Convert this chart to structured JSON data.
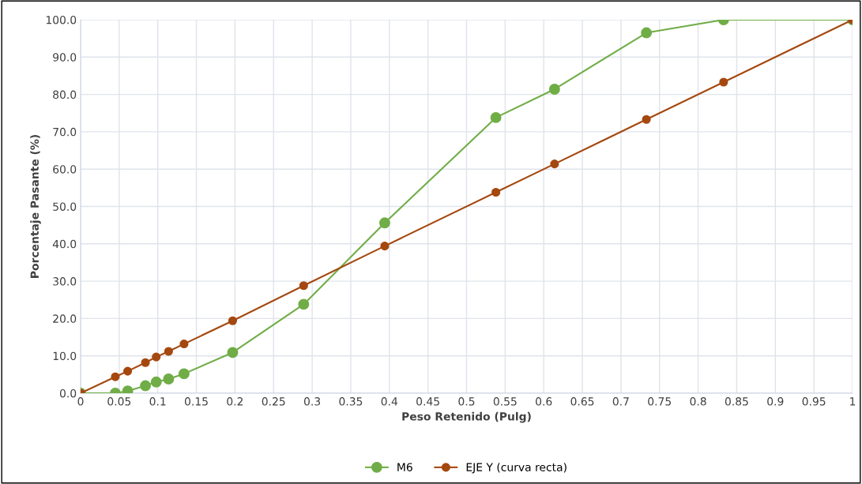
{
  "chart_data": {
    "type": "line",
    "xlabel": "Peso Retenido (Pulg)",
    "ylabel": "Porcentaje Pasante (%)",
    "xlim": [
      0,
      1
    ],
    "ylim": [
      0,
      100
    ],
    "xticks": [
      0,
      0.05,
      0.1,
      0.15,
      0.2,
      0.25,
      0.3,
      0.35,
      0.4,
      0.45,
      0.5,
      0.55,
      0.6,
      0.65,
      0.7,
      0.75,
      0.8,
      0.85,
      0.9,
      0.95,
      1
    ],
    "yticks": [
      {
        "value": 0,
        "label": "0.0"
      },
      {
        "value": 10,
        "label": "10.0"
      },
      {
        "value": 20,
        "label": "20.0"
      },
      {
        "value": 30,
        "label": "30.0"
      },
      {
        "value": 40,
        "label": "40.0"
      },
      {
        "value": 50,
        "label": "50.0"
      },
      {
        "value": 60,
        "label": "60.0"
      },
      {
        "value": 70,
        "label": "70.0"
      },
      {
        "value": 80,
        "label": "80.0"
      },
      {
        "value": 90,
        "label": "90.0"
      },
      {
        "value": 100,
        "label": "100.0"
      }
    ],
    "x": [
      0,
      0.045,
      0.061,
      0.084,
      0.098,
      0.114,
      0.134,
      0.197,
      0.289,
      0.394,
      0.538,
      0.614,
      0.733,
      0.833,
      1
    ],
    "series": [
      {
        "name": "M6",
        "color": "#70ad47",
        "values": [
          0,
          0,
          0.6,
          2.0,
          3.0,
          3.8,
          5.2,
          10.9,
          23.8,
          45.6,
          73.8,
          81.4,
          96.5,
          100,
          100
        ]
      },
      {
        "name": "EJE Y (curva recta)",
        "color": "#a5480f",
        "values": [
          0,
          4.4,
          5.9,
          8.2,
          9.7,
          11.2,
          13.2,
          19.4,
          28.8,
          39.4,
          53.8,
          61.4,
          73.3,
          83.3,
          100
        ]
      }
    ],
    "grid": true,
    "legend": "bottom",
    "marker": "circle",
    "line_style": "solid"
  }
}
